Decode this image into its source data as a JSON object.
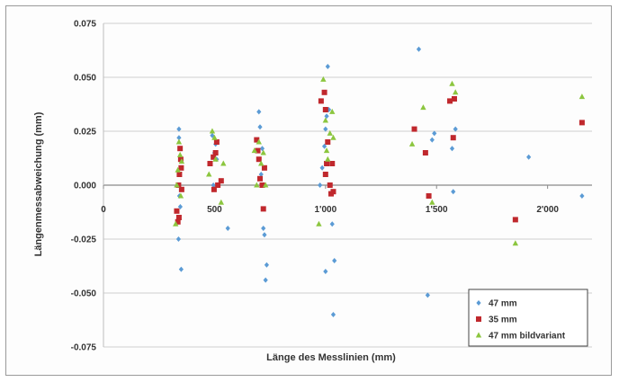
{
  "chart_data": {
    "type": "scatter",
    "xlabel": "Länge des Messlinien (mm)",
    "ylabel": "Längenmessabweichung (mm)",
    "xlim": [
      0,
      2200
    ],
    "ylim": [
      -0.075,
      0.075
    ],
    "y_ticks": [
      -0.075,
      -0.05,
      -0.025,
      0.0,
      0.025,
      0.05,
      0.075
    ],
    "y_tick_labels": [
      "-0.075",
      "-0.050",
      "-0.025",
      "0.000",
      "0.025",
      "0.050",
      "0.075"
    ],
    "x_ticks": [
      0,
      500,
      1000,
      1500,
      2000
    ],
    "x_tick_labels": [
      "0",
      "500",
      "1'000",
      "1'500",
      "2'000"
    ],
    "grid": "horizontal",
    "legend_position": "bottom-right",
    "series": [
      {
        "name": "47 mm",
        "color": "#5b9bd5",
        "marker": "diamond",
        "points": [
          [
            340,
            0.026
          ],
          [
            340,
            0.022
          ],
          [
            345,
            0.017
          ],
          [
            342,
            -0.005
          ],
          [
            338,
            -0.025
          ],
          [
            350,
            -0.039
          ],
          [
            346,
            -0.01
          ],
          [
            490,
            0.023
          ],
          [
            500,
            0.015
          ],
          [
            510,
            0.012
          ],
          [
            505,
            0.019
          ],
          [
            495,
            0.0
          ],
          [
            560,
            -0.02
          ],
          [
            700,
            0.034
          ],
          [
            705,
            0.027
          ],
          [
            720,
            -0.02
          ],
          [
            725,
            -0.023
          ],
          [
            730,
            -0.044
          ],
          [
            735,
            -0.037
          ],
          [
            710,
            0.005
          ],
          [
            715,
            0.017
          ],
          [
            975,
            0.0
          ],
          [
            985,
            0.008
          ],
          [
            995,
            0.018
          ],
          [
            1000,
            0.026
          ],
          [
            1005,
            0.032
          ],
          [
            1010,
            0.055
          ],
          [
            1000,
            -0.04
          ],
          [
            1040,
            -0.035
          ],
          [
            1035,
            -0.06
          ],
          [
            1030,
            -0.018
          ],
          [
            1015,
            0.035
          ],
          [
            1420,
            0.063
          ],
          [
            1460,
            -0.051
          ],
          [
            1490,
            0.024
          ],
          [
            1480,
            0.021
          ],
          [
            1570,
            0.017
          ],
          [
            1575,
            -0.003
          ],
          [
            1585,
            0.026
          ],
          [
            1915,
            0.013
          ],
          [
            2155,
            -0.005
          ]
        ]
      },
      {
        "name": "35 mm",
        "color": "#c0282d",
        "marker": "square",
        "points": [
          [
            330,
            -0.012
          ],
          [
            335,
            -0.017
          ],
          [
            340,
            -0.015
          ],
          [
            345,
            0.017
          ],
          [
            350,
            0.008
          ],
          [
            342,
            0.005
          ],
          [
            348,
            0.012
          ],
          [
            352,
            -0.002
          ],
          [
            338,
            0.0
          ],
          [
            480,
            0.01
          ],
          [
            495,
            0.013
          ],
          [
            510,
            0.02
          ],
          [
            515,
            0.0
          ],
          [
            530,
            0.002
          ],
          [
            505,
            0.015
          ],
          [
            498,
            -0.002
          ],
          [
            690,
            0.021
          ],
          [
            700,
            0.012
          ],
          [
            705,
            0.003
          ],
          [
            715,
            0.0
          ],
          [
            720,
            -0.011
          ],
          [
            725,
            0.008
          ],
          [
            695,
            0.016
          ],
          [
            980,
            0.039
          ],
          [
            995,
            0.043
          ],
          [
            1000,
            0.035
          ],
          [
            1010,
            0.02
          ],
          [
            1005,
            0.01
          ],
          [
            1020,
            0.0
          ],
          [
            1035,
            -0.003
          ],
          [
            1030,
            0.01
          ],
          [
            1000,
            0.005
          ],
          [
            1025,
            -0.004
          ],
          [
            1400,
            0.026
          ],
          [
            1450,
            0.015
          ],
          [
            1465,
            -0.005
          ],
          [
            1560,
            0.039
          ],
          [
            1580,
            0.04
          ],
          [
            1575,
            0.022
          ],
          [
            1855,
            -0.016
          ],
          [
            2155,
            0.029
          ]
        ]
      },
      {
        "name": "47 mm bildvariant",
        "color": "#8cc63f",
        "marker": "triangle",
        "points": [
          [
            325,
            -0.018
          ],
          [
            330,
            0.0
          ],
          [
            340,
            0.02
          ],
          [
            345,
            0.014
          ],
          [
            352,
            0.011
          ],
          [
            335,
            0.007
          ],
          [
            348,
            -0.005
          ],
          [
            475,
            0.005
          ],
          [
            490,
            0.025
          ],
          [
            500,
            0.022
          ],
          [
            505,
            0.012
          ],
          [
            530,
            -0.008
          ],
          [
            540,
            0.01
          ],
          [
            680,
            0.016
          ],
          [
            690,
            0.0
          ],
          [
            700,
            0.02
          ],
          [
            720,
            0.015
          ],
          [
            730,
            0.0
          ],
          [
            710,
            0.01
          ],
          [
            970,
            -0.018
          ],
          [
            990,
            0.049
          ],
          [
            1000,
            0.03
          ],
          [
            1005,
            0.016
          ],
          [
            1020,
            0.024
          ],
          [
            1035,
            0.022
          ],
          [
            1030,
            0.034
          ],
          [
            1010,
            0.012
          ],
          [
            1390,
            0.019
          ],
          [
            1440,
            0.036
          ],
          [
            1480,
            -0.008
          ],
          [
            1570,
            0.047
          ],
          [
            1585,
            0.043
          ],
          [
            1855,
            -0.027
          ],
          [
            2155,
            0.041
          ]
        ]
      }
    ]
  }
}
